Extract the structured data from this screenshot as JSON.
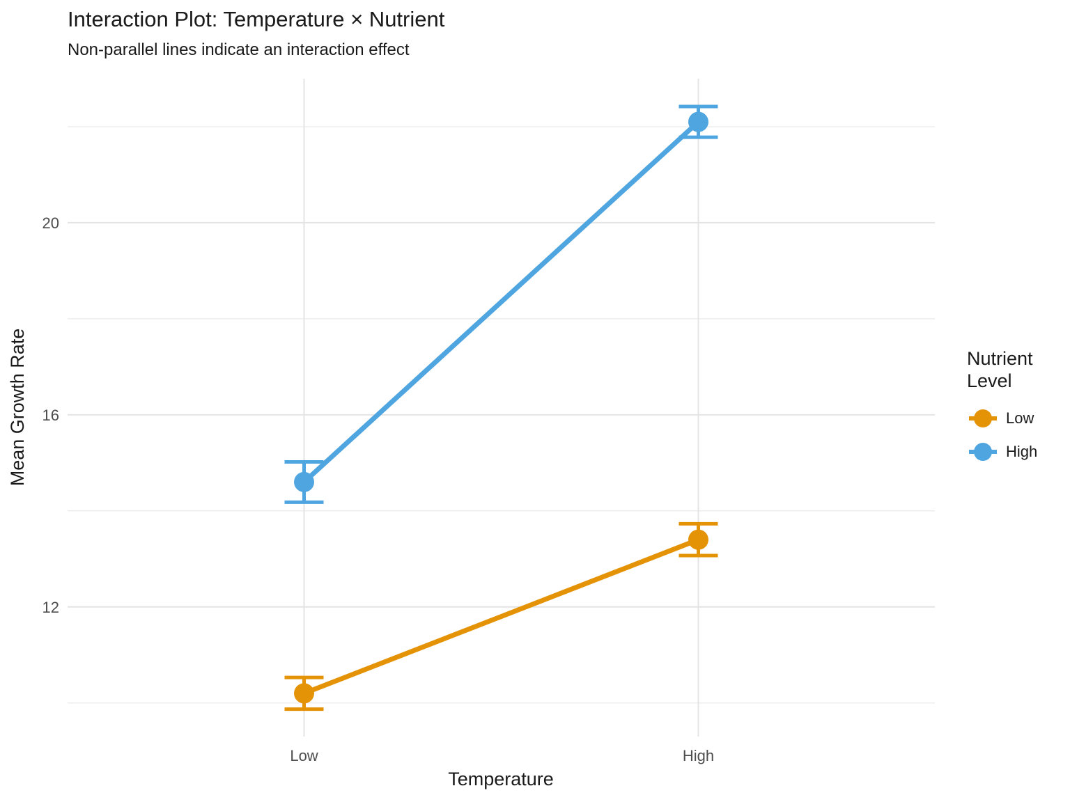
{
  "chart": {
    "title": "Interaction Plot: Temperature × Nutrient",
    "subtitle": "Non-parallel lines indicate an interaction effect",
    "xlabel": "Temperature",
    "ylabel": "Mean Growth Rate",
    "legend_title": "Nutrient\nLevel"
  },
  "chart_data": {
    "type": "line",
    "title": "Interaction Plot: Temperature × Nutrient",
    "subtitle": "Non-parallel lines indicate an interaction effect",
    "xlabel": "Temperature",
    "ylabel": "Mean Growth Rate",
    "categories": [
      "Low",
      "High"
    ],
    "series": [
      {
        "name": "Low",
        "color": "#E49307",
        "means": [
          10.2,
          13.4
        ],
        "errors": [
          0.33,
          0.33
        ]
      },
      {
        "name": "High",
        "color": "#4FA5DF",
        "means": [
          14.6,
          22.1
        ],
        "errors": [
          0.42,
          0.32
        ]
      }
    ],
    "error_bars": true,
    "legend": {
      "title": "Nutrient Level",
      "position": "right",
      "entries": [
        "Low",
        "High"
      ]
    },
    "yticks": {
      "major": [
        12,
        16,
        20
      ],
      "minor": [
        10,
        14,
        18,
        22
      ]
    },
    "ylim": [
      9.3,
      23.0
    ],
    "grid": true,
    "grid_major_color": "#E4E4E4",
    "grid_minor_color": "#EDEDED",
    "tick_label_color": "#4D4D4D"
  }
}
